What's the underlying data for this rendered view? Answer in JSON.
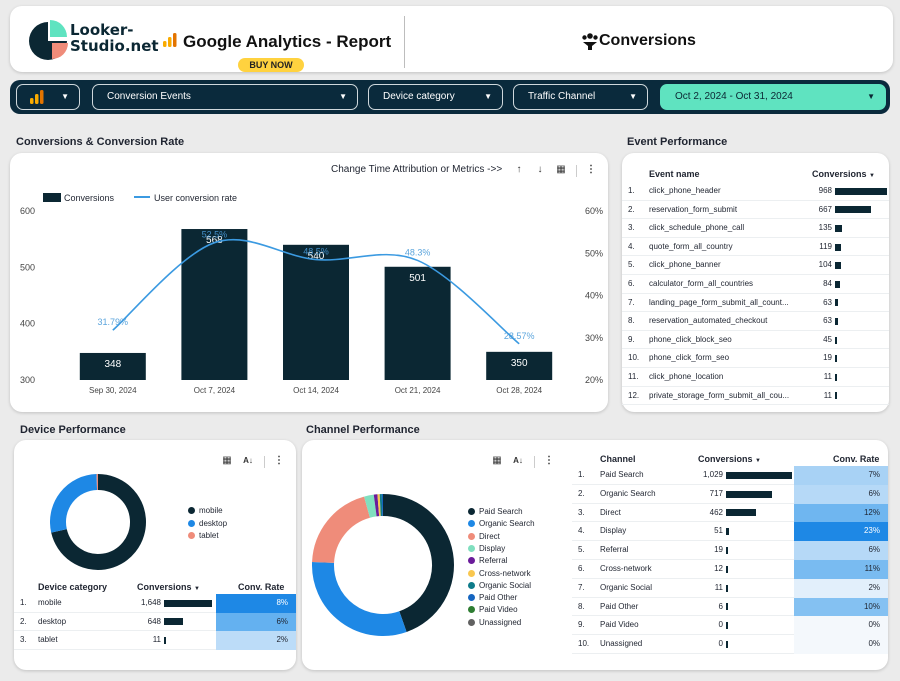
{
  "header": {
    "logo_line1": "Looker-",
    "logo_line2": "Studio.net",
    "report_title": "Google Analytics - Report",
    "buy_label": "BUY NOW",
    "section_title": "Conversions"
  },
  "filters": {
    "conversion_events": "Conversion Events",
    "device_category": "Device category",
    "traffic_channel": "Traffic Channel",
    "date_range": "Oct 2, 2024 - Oct 31, 2024"
  },
  "conv_chart_section": {
    "title": "Conversions & Conversion Rate",
    "toolbar_label": "Change Time Attribution or Metrics ->>",
    "legend_bar": "Conversions",
    "legend_line": "User conversion rate"
  },
  "chart_data": {
    "type": "bar",
    "categories": [
      "Sep 30, 2024",
      "Oct 7, 2024",
      "Oct 14, 2024",
      "Oct 21, 2024",
      "Oct 28, 2024"
    ],
    "series": [
      {
        "name": "Conversions",
        "type": "bar",
        "values": [
          348,
          568,
          540,
          501,
          350
        ],
        "labels": [
          "348",
          "568",
          "540",
          "501",
          "350"
        ]
      },
      {
        "name": "User conversion rate",
        "type": "line",
        "values": [
          31.79,
          52.5,
          48.5,
          48.3,
          28.57
        ],
        "labels": [
          "31.79%",
          "52.5%",
          "48.5%",
          "48.3%",
          "28.57%"
        ]
      }
    ],
    "y_left": {
      "ticks": [
        "300",
        "400",
        "500",
        "600"
      ],
      "ylim": [
        300,
        600
      ]
    },
    "y_right": {
      "ticks": [
        "20%",
        "30%",
        "40%",
        "50%",
        "60%"
      ],
      "ylim": [
        20,
        60
      ]
    },
    "colors": {
      "bar": "#0b2733",
      "line": "#3b9ae1",
      "label": "#4a9bd9"
    }
  },
  "event_performance": {
    "title": "Event Performance",
    "col_event": "Event name",
    "col_conv": "Conversions",
    "max": 968,
    "rows": [
      {
        "n": "1.",
        "name": "click_phone_header",
        "value": "968",
        "v": 968
      },
      {
        "n": "2.",
        "name": "reservation_form_submit",
        "value": "667",
        "v": 667
      },
      {
        "n": "3.",
        "name": "click_schedule_phone_call",
        "value": "135",
        "v": 135
      },
      {
        "n": "4.",
        "name": "quote_form_all_country",
        "value": "119",
        "v": 119
      },
      {
        "n": "5.",
        "name": "click_phone_banner",
        "value": "104",
        "v": 104
      },
      {
        "n": "6.",
        "name": "calculator_form_all_countries",
        "value": "84",
        "v": 84
      },
      {
        "n": "7.",
        "name": "landing_page_form_submit_all_count...",
        "value": "63",
        "v": 63
      },
      {
        "n": "8.",
        "name": "reservation_automated_checkout",
        "value": "63",
        "v": 63
      },
      {
        "n": "9.",
        "name": "phone_click_block_seo",
        "value": "45",
        "v": 45
      },
      {
        "n": "10.",
        "name": "phone_click_form_seo",
        "value": "19",
        "v": 19
      },
      {
        "n": "11.",
        "name": "click_phone_location",
        "value": "11",
        "v": 11
      },
      {
        "n": "12.",
        "name": "private_storage_form_submit_all_cou...",
        "value": "11",
        "v": 11
      }
    ]
  },
  "device_performance": {
    "title": "Device Performance",
    "legend": [
      {
        "label": "mobile",
        "color": "#0b2733"
      },
      {
        "label": "desktop",
        "color": "#1e88e5"
      },
      {
        "label": "tablet",
        "color": "#ef8c7a"
      }
    ],
    "donut": [
      1648,
      648,
      11
    ],
    "col_device": "Device category",
    "col_conv": "Conversions",
    "col_rate": "Conv. Rate",
    "max": 1648,
    "rows": [
      {
        "n": "1.",
        "name": "mobile",
        "value": "1,648",
        "v": 1648,
        "rate": "8%",
        "rate_color": "#1e88e5"
      },
      {
        "n": "2.",
        "name": "desktop",
        "value": "648",
        "v": 648,
        "rate": "6%",
        "rate_color": "#64b1f0"
      },
      {
        "n": "3.",
        "name": "tablet",
        "value": "11",
        "v": 11,
        "rate": "2%",
        "rate_color": "#bcdcf8"
      }
    ]
  },
  "channel_performance": {
    "title": "Channel Performance",
    "legend": [
      {
        "label": "Paid Search",
        "color": "#0b2733"
      },
      {
        "label": "Organic Search",
        "color": "#1e88e5"
      },
      {
        "label": "Direct",
        "color": "#ef8c7a"
      },
      {
        "label": "Display",
        "color": "#80dfbf"
      },
      {
        "label": "Referral",
        "color": "#6a1b9a"
      },
      {
        "label": "Cross-network",
        "color": "#f9c74f"
      },
      {
        "label": "Organic Social",
        "color": "#0e7b8a"
      },
      {
        "label": "Paid Other",
        "color": "#1565c0"
      },
      {
        "label": "Paid Video",
        "color": "#2e7d32"
      },
      {
        "label": "Unassigned",
        "color": "#616161"
      }
    ],
    "donut": [
      1029,
      717,
      462,
      51,
      19,
      12,
      11,
      6,
      0,
      0
    ],
    "col_channel": "Channel",
    "col_conv": "Conversions",
    "col_rate": "Conv. Rate",
    "max": 1029,
    "rows": [
      {
        "n": "1.",
        "name": "Paid Search",
        "value": "1,029",
        "v": 1029,
        "rate": "7%",
        "rate_color": "#a8d2f5"
      },
      {
        "n": "2.",
        "name": "Organic Search",
        "value": "717",
        "v": 717,
        "rate": "6%",
        "rate_color": "#b6d9f7"
      },
      {
        "n": "3.",
        "name": "Direct",
        "value": "462",
        "v": 462,
        "rate": "12%",
        "rate_color": "#6fb6f0"
      },
      {
        "n": "4.",
        "name": "Display",
        "value": "51",
        "v": 51,
        "rate": "23%",
        "rate_color": "#1e88e5"
      },
      {
        "n": "5.",
        "name": "Referral",
        "value": "19",
        "v": 19,
        "rate": "6%",
        "rate_color": "#b6d9f7"
      },
      {
        "n": "6.",
        "name": "Cross-network",
        "value": "12",
        "v": 12,
        "rate": "11%",
        "rate_color": "#79bbf1"
      },
      {
        "n": "7.",
        "name": "Organic Social",
        "value": "11",
        "v": 11,
        "rate": "2%",
        "rate_color": "#e2effb"
      },
      {
        "n": "8.",
        "name": "Paid Other",
        "value": "6",
        "v": 6,
        "rate": "10%",
        "rate_color": "#84c1f2"
      },
      {
        "n": "9.",
        "name": "Paid Video",
        "value": "0",
        "v": 0,
        "rate": "0%",
        "rate_color": "#f4f8fc"
      },
      {
        "n": "10.",
        "name": "Unassigned",
        "value": "0",
        "v": 0,
        "rate": "0%",
        "rate_color": "#f4f8fc"
      }
    ]
  }
}
